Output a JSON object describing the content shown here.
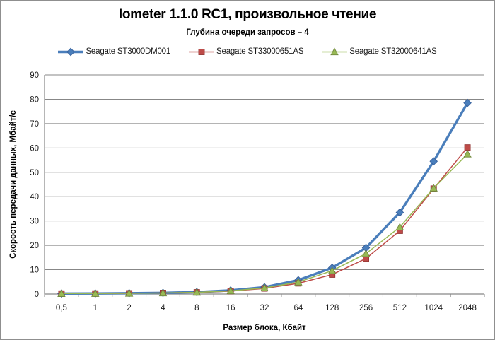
{
  "chart_data": {
    "type": "line",
    "title": "Iometer 1.1.0 RC1, произвольное чтение",
    "subtitle": "Глубина очереди запросов – 4",
    "xlabel": "Размер блока, Кбайт",
    "ylabel": "Скорость передачи данных, Мбайт/с",
    "categories": [
      "0,5",
      "1",
      "2",
      "4",
      "8",
      "16",
      "32",
      "64",
      "128",
      "256",
      "512",
      "1024",
      "2048"
    ],
    "ylim": [
      0,
      90
    ],
    "ytick_step": 10,
    "yticks": [
      0,
      10,
      20,
      30,
      40,
      50,
      60,
      70,
      80,
      90
    ],
    "grid": "horizontal-on",
    "legend_position": "top",
    "series": [
      {
        "name": "Seagate ST3000DM001",
        "color": "#4A7EBB",
        "edge_color": "#38619C",
        "marker": "diamond",
        "line_width": 3.4,
        "values": [
          0.2,
          0.25,
          0.35,
          0.5,
          0.8,
          1.5,
          2.8,
          5.7,
          10.8,
          19.0,
          33.5,
          54.5,
          78.5
        ]
      },
      {
        "name": "Seagate ST33000651AS",
        "color": "#BE4B48",
        "edge_color": "#943634",
        "marker": "square",
        "line_width": 1.5,
        "values": [
          0.2,
          0.22,
          0.3,
          0.45,
          0.7,
          1.2,
          2.3,
          4.4,
          8.0,
          14.6,
          26.0,
          43.3,
          60.2
        ]
      },
      {
        "name": "Seagate ST32000641AS",
        "color": "#98B954",
        "edge_color": "#71893F",
        "marker": "triangle",
        "line_width": 1.5,
        "values": [
          0.2,
          0.22,
          0.3,
          0.45,
          0.7,
          1.3,
          2.5,
          4.9,
          9.6,
          16.6,
          27.5,
          43.5,
          57.5
        ]
      }
    ],
    "grid_color": "#878787",
    "axis_color": "#878787"
  }
}
